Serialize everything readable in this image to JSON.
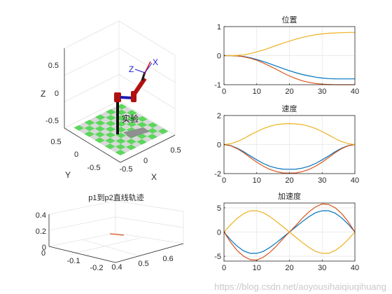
{
  "chart_data": [
    {
      "type": "line",
      "title": "位置",
      "xlim": [
        0,
        40
      ],
      "ylim": [
        -1,
        1
      ],
      "xticks": [
        "0",
        "10",
        "20",
        "30",
        "40"
      ],
      "yticks": [
        "1",
        "0",
        "-1"
      ],
      "grid": true,
      "series": [
        {
          "color": "#0072BD",
          "x": [
            0,
            2,
            4,
            6,
            8,
            10,
            12,
            14,
            16,
            18,
            20,
            22,
            24,
            26,
            28,
            30,
            32,
            34,
            36,
            38,
            40
          ],
          "values": [
            0,
            0,
            -0.01,
            -0.03,
            -0.07,
            -0.13,
            -0.2,
            -0.28,
            -0.36,
            -0.44,
            -0.52,
            -0.59,
            -0.65,
            -0.7,
            -0.74,
            -0.77,
            -0.79,
            -0.8,
            -0.8,
            -0.8,
            -0.8
          ]
        },
        {
          "color": "#D95319",
          "x": [
            0,
            2,
            4,
            6,
            8,
            10,
            12,
            14,
            16,
            18,
            20,
            22,
            24,
            26,
            28,
            30,
            32,
            34,
            36,
            38,
            40
          ],
          "values": [
            0,
            0,
            -0.01,
            -0.04,
            -0.09,
            -0.16,
            -0.25,
            -0.36,
            -0.47,
            -0.59,
            -0.7,
            -0.79,
            -0.87,
            -0.92,
            -0.96,
            -0.98,
            -0.99,
            -1.0,
            -1.0,
            -1.0,
            -1.0
          ]
        },
        {
          "color": "#EDB120",
          "x": [
            0,
            2,
            4,
            6,
            8,
            10,
            12,
            14,
            16,
            18,
            20,
            22,
            24,
            26,
            28,
            30,
            32,
            34,
            36,
            38,
            40
          ],
          "values": [
            0,
            0,
            0.01,
            0.03,
            0.07,
            0.13,
            0.19,
            0.27,
            0.35,
            0.43,
            0.5,
            0.57,
            0.63,
            0.68,
            0.72,
            0.75,
            0.77,
            0.78,
            0.79,
            0.8,
            0.8
          ]
        }
      ]
    },
    {
      "type": "line",
      "title": "速度",
      "xlim": [
        0,
        40
      ],
      "ylim": [
        -2,
        2
      ],
      "xticks": [
        "0",
        "10",
        "20",
        "30",
        "40"
      ],
      "yticks": [
        "2",
        "0",
        "-2"
      ],
      "grid": true,
      "series": [
        {
          "color": "#0072BD",
          "x": [
            0,
            2,
            4,
            6,
            8,
            10,
            12,
            14,
            16,
            18,
            20,
            22,
            24,
            26,
            28,
            30,
            32,
            34,
            36,
            38,
            40
          ],
          "values": [
            0,
            -0.07,
            -0.24,
            -0.49,
            -0.78,
            -1.05,
            -1.3,
            -1.49,
            -1.62,
            -1.69,
            -1.7,
            -1.69,
            -1.62,
            -1.49,
            -1.3,
            -1.05,
            -0.78,
            -0.49,
            -0.24,
            -0.07,
            0
          ]
        },
        {
          "color": "#D95319",
          "x": [
            0,
            2,
            4,
            6,
            8,
            10,
            12,
            14,
            16,
            18,
            20,
            22,
            24,
            26,
            28,
            30,
            32,
            34,
            36,
            38,
            40
          ],
          "values": [
            0,
            -0.08,
            -0.28,
            -0.56,
            -0.89,
            -1.21,
            -1.49,
            -1.71,
            -1.86,
            -1.95,
            -1.97,
            -1.95,
            -1.86,
            -1.71,
            -1.49,
            -1.21,
            -0.89,
            -0.56,
            -0.28,
            -0.08,
            0
          ]
        },
        {
          "color": "#EDB120",
          "x": [
            0,
            2,
            4,
            6,
            8,
            10,
            12,
            14,
            16,
            18,
            20,
            22,
            24,
            26,
            28,
            30,
            32,
            34,
            36,
            38,
            40
          ],
          "values": [
            0,
            0.06,
            0.2,
            0.41,
            0.66,
            0.89,
            1.1,
            1.26,
            1.37,
            1.42,
            1.44,
            1.42,
            1.37,
            1.26,
            1.1,
            0.89,
            0.66,
            0.41,
            0.2,
            0.06,
            0
          ]
        }
      ]
    },
    {
      "type": "line",
      "title": "加速度",
      "xlim": [
        0,
        40
      ],
      "ylim": [
        -6,
        6
      ],
      "xticks": [
        "0",
        "10",
        "20",
        "30",
        "40"
      ],
      "yticks": [
        "5",
        "0",
        "-5"
      ],
      "grid": true,
      "series": [
        {
          "color": "#0072BD",
          "x": [
            0,
            2,
            4,
            6,
            8,
            10,
            12,
            14,
            16,
            18,
            20,
            22,
            24,
            26,
            28,
            30,
            32,
            34,
            36,
            38,
            40
          ],
          "values": [
            0,
            -1.6,
            -2.9,
            -3.9,
            -4.4,
            -4.4,
            -4.0,
            -3.2,
            -2.2,
            -1.1,
            0,
            1.1,
            2.2,
            3.2,
            4.0,
            4.4,
            4.4,
            3.9,
            2.9,
            1.6,
            0
          ]
        },
        {
          "color": "#D95319",
          "x": [
            0,
            2,
            4,
            6,
            8,
            10,
            12,
            14,
            16,
            18,
            20,
            22,
            24,
            26,
            28,
            30,
            32,
            34,
            36,
            38,
            40
          ],
          "values": [
            0,
            -2.1,
            -3.8,
            -5.0,
            -5.7,
            -5.8,
            -5.2,
            -4.2,
            -2.9,
            -1.4,
            0,
            1.4,
            2.9,
            4.2,
            5.2,
            5.8,
            5.7,
            5.0,
            3.8,
            2.1,
            0
          ]
        },
        {
          "color": "#EDB120",
          "x": [
            0,
            2,
            4,
            6,
            8,
            10,
            12,
            14,
            16,
            18,
            20,
            22,
            24,
            26,
            28,
            30,
            32,
            34,
            36,
            38,
            40
          ],
          "values": [
            0,
            1.5,
            2.8,
            3.8,
            4.4,
            4.4,
            4.0,
            3.2,
            2.2,
            1.1,
            0,
            -1.1,
            -2.2,
            -3.2,
            -4.0,
            -4.4,
            -4.4,
            -3.8,
            -2.8,
            -1.5,
            0
          ]
        }
      ]
    },
    {
      "type": "line3d",
      "title": "p1到p2直线轨迹",
      "xticks": [
        "0.4",
        "0.5",
        "0.6"
      ],
      "yticks": [
        "-0.1",
        "-0.2"
      ],
      "zticks": [
        "0.4",
        "0.2",
        "0"
      ],
      "grid": true,
      "series": [
        {
          "color": "#D95319",
          "x": [
            0.45,
            0.52
          ],
          "y": [
            -0.14,
            -0.14
          ],
          "z": [
            0.1,
            0.1
          ]
        }
      ]
    },
    {
      "type": "robot3d",
      "xlabel": "X",
      "ylabel": "Y",
      "zlabel": "Z",
      "xticks": [
        "-0.5",
        "0",
        "0.5"
      ],
      "yticks": [
        "0.5",
        "0",
        "-0.5"
      ],
      "zticks": [
        "0.5",
        "0",
        "-0.5"
      ],
      "label": "实验",
      "frame_labels": [
        "Z",
        "X"
      ],
      "colors": {
        "floor_green": "#5cd65c",
        "floor_gray": "#d8d8d8",
        "robot": "#b01010",
        "joint": "#1a1ab0",
        "frame": "#1a1ad0",
        "arrow": "#e01010"
      }
    }
  ],
  "watermark": "https://blog.csdn.net/aoyousihaiqiuqihuang"
}
